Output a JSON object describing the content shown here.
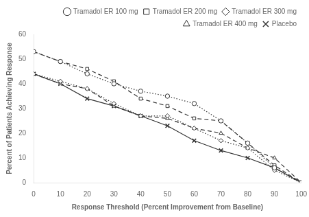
{
  "chart_data": {
    "type": "line",
    "xlabel": "Response Threshold (Percent Improvement from Baseline)",
    "ylabel": "Percent of Patients Achieving Response",
    "x": [
      0,
      10,
      20,
      30,
      40,
      50,
      60,
      70,
      80,
      90,
      100
    ],
    "series": [
      {
        "name": "Tramadol ER 100 mg",
        "color": "#333333",
        "marker": "circle",
        "line_style": "dotted",
        "values": [
          53,
          49,
          44,
          40,
          37,
          35,
          32,
          25,
          16,
          6,
          0
        ]
      },
      {
        "name": "Tramadol ER 200 mg",
        "color": "#333333",
        "marker": "square",
        "line_style": "dashed",
        "values": [
          53,
          49,
          46,
          41,
          34,
          31,
          26,
          25,
          16,
          7,
          0
        ]
      },
      {
        "name": "Tramadol ER 300 mg",
        "color": "#333333",
        "marker": "diamond",
        "line_style": "dotted",
        "values": [
          44,
          41,
          38,
          32,
          27,
          27,
          22,
          17,
          14,
          5,
          0
        ]
      },
      {
        "name": "Tramadol ER 400 mg",
        "color": "#333333",
        "marker": "triangle",
        "line_style": "dashed",
        "values": [
          44,
          40,
          38,
          31,
          27,
          26,
          22,
          20,
          14,
          10,
          0
        ]
      },
      {
        "name": "Placebo",
        "color": "#333333",
        "marker": "x",
        "line_style": "solid",
        "values": [
          44,
          40,
          34,
          31,
          27,
          23,
          17,
          13,
          10,
          6,
          0
        ]
      }
    ],
    "xlim": [
      0,
      100
    ],
    "xticks": [
      0,
      10,
      20,
      30,
      40,
      50,
      60,
      70,
      80,
      90,
      100
    ],
    "ylim": [
      0,
      60
    ],
    "yticks": [
      0,
      10,
      20,
      30,
      40,
      50,
      60
    ],
    "grid": false,
    "legend": "upper right"
  }
}
